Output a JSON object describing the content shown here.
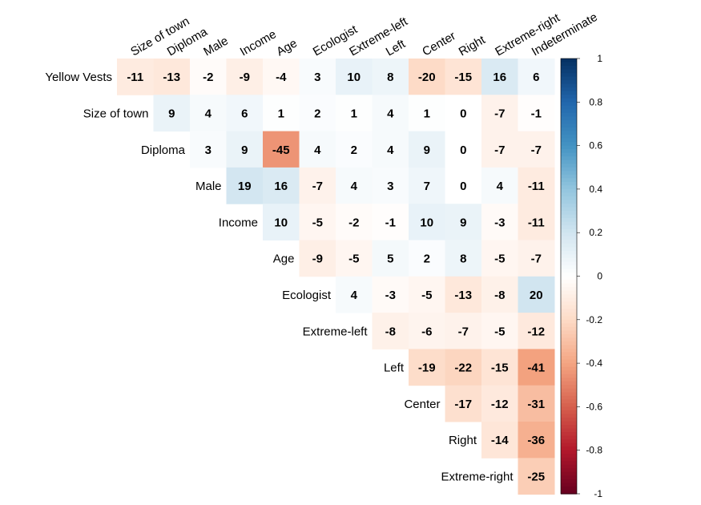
{
  "chart_data": {
    "type": "heatmap",
    "subtype": "upper-triangle correlation matrix",
    "columns": [
      "Size of town",
      "Diploma",
      "Male",
      "Income",
      "Age",
      "Ecologist",
      "Extreme-left",
      "Left",
      "Center",
      "Right",
      "Extreme-right",
      "Indeterminate"
    ],
    "rows": [
      {
        "label": "Yellow Vests",
        "values": [
          -11,
          -13,
          -2,
          -9,
          -4,
          3,
          10,
          8,
          -20,
          -15,
          16,
          6
        ]
      },
      {
        "label": "Size of town",
        "values": [
          9,
          4,
          6,
          1,
          2,
          1,
          4,
          1,
          0,
          -7,
          -1
        ]
      },
      {
        "label": "Diploma",
        "values": [
          3,
          9,
          -45,
          4,
          2,
          4,
          9,
          0,
          -7,
          -7
        ]
      },
      {
        "label": "Male",
        "values": [
          19,
          16,
          -7,
          4,
          3,
          7,
          0,
          4,
          -11
        ]
      },
      {
        "label": "Income",
        "values": [
          10,
          -5,
          -2,
          -1,
          10,
          9,
          -3,
          -11
        ]
      },
      {
        "label": "Age",
        "values": [
          -9,
          -5,
          5,
          2,
          8,
          -5,
          -7
        ]
      },
      {
        "label": "Ecologist",
        "values": [
          4,
          -3,
          -5,
          -13,
          -8,
          20
        ]
      },
      {
        "label": "Extreme-left",
        "values": [
          -8,
          -6,
          -7,
          -5,
          -12
        ]
      },
      {
        "label": "Left",
        "values": [
          -19,
          -22,
          -15,
          -41
        ]
      },
      {
        "label": "Center",
        "values": [
          -17,
          -12,
          -31
        ]
      },
      {
        "label": "Right",
        "values": [
          -14,
          -36
        ]
      },
      {
        "label": "Extreme-right",
        "values": [
          -25
        ]
      }
    ],
    "value_scale": "correlation x 100",
    "colorbar": {
      "range": [
        -1,
        1
      ],
      "ticks": [
        "1",
        "0.8",
        "0.6",
        "0.4",
        "0.2",
        "0",
        "-0.2",
        "-0.4",
        "-0.6",
        "-0.8",
        "-1"
      ],
      "colors": {
        "neg": "#67001F",
        "mid": "#FFFFFF",
        "pos": "#053061"
      },
      "placement": "right"
    }
  }
}
